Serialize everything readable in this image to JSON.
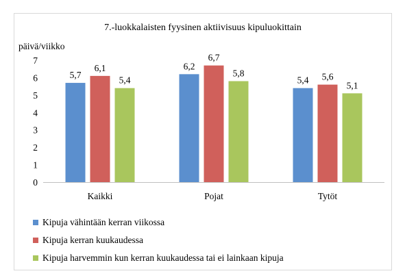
{
  "chart_data": {
    "type": "bar",
    "title": "7.-luokkalaisten fyysinen aktiivisuus kipuluokittain",
    "ylabel": "päivä/viikko",
    "xlabel": "",
    "categories": [
      "Kaikki",
      "Pojat",
      "Tytöt"
    ],
    "ylim": [
      0,
      7
    ],
    "yticks": [
      "0",
      "1",
      "2",
      "3",
      "4",
      "5",
      "6",
      "7"
    ],
    "grid": false,
    "legend_position": "bottom",
    "series": [
      {
        "name": "Kipuja vähintään kerran viikossa",
        "values": [
          5.7,
          6.2,
          5.4
        ],
        "labels": [
          "5,7",
          "6,2",
          "5,4"
        ],
        "color": "#5b8fce"
      },
      {
        "name": "Kipuja kerran kuukaudessa",
        "values": [
          6.1,
          6.7,
          5.6
        ],
        "labels": [
          "6,1",
          "6,7",
          "5,6"
        ],
        "color": "#d0605b"
      },
      {
        "name": "Kipuja harvemmin kun kerran kuukaudessa tai ei lainkaan kipuja",
        "values": [
          5.4,
          5.8,
          5.1
        ],
        "labels": [
          "5,4",
          "5,8",
          "5,1"
        ],
        "color": "#a9c65d"
      }
    ]
  }
}
